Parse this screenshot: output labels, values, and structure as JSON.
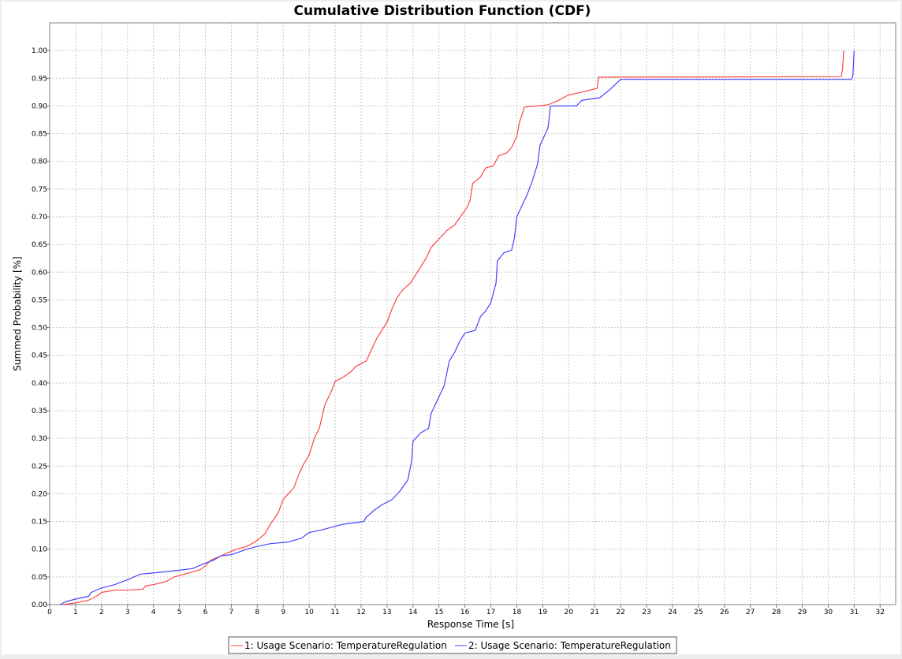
{
  "chart_data": {
    "type": "line",
    "title": "Cumulative Distribution Function (CDF)",
    "xlabel": "Response Time [s]",
    "ylabel": "Summed Probability [%]",
    "xlim": [
      0,
      32.6
    ],
    "ylim": [
      0,
      1.05
    ],
    "xticks": [
      "0",
      "1",
      "2",
      "3",
      "4",
      "5",
      "6",
      "7",
      "8",
      "9",
      "10",
      "11",
      "12",
      "13",
      "14",
      "15",
      "16",
      "17",
      "18",
      "19",
      "20",
      "21",
      "22",
      "23",
      "24",
      "25",
      "26",
      "27",
      "28",
      "29",
      "30",
      "31",
      "32"
    ],
    "yticks": [
      "0.00",
      "0.05",
      "0.10",
      "0.15",
      "0.20",
      "0.25",
      "0.30",
      "0.35",
      "0.40",
      "0.45",
      "0.50",
      "0.55",
      "0.60",
      "0.65",
      "0.70",
      "0.75",
      "0.80",
      "0.85",
      "0.90",
      "0.95",
      "1.00"
    ],
    "grid": true,
    "legend_position": "bottom",
    "series": [
      {
        "name": "1: Usage Scenario: TemperatureRegulation",
        "color": "#ff4444",
        "points": [
          [
            0.5,
            0.0
          ],
          [
            1.0,
            0.003
          ],
          [
            1.5,
            0.008
          ],
          [
            1.8,
            0.015
          ],
          [
            2.0,
            0.022
          ],
          [
            2.5,
            0.026
          ],
          [
            3.0,
            0.026
          ],
          [
            3.6,
            0.028
          ],
          [
            3.7,
            0.034
          ],
          [
            4.0,
            0.036
          ],
          [
            4.5,
            0.042
          ],
          [
            4.8,
            0.05
          ],
          [
            5.2,
            0.055
          ],
          [
            5.8,
            0.063
          ],
          [
            6.0,
            0.07
          ],
          [
            6.2,
            0.08
          ],
          [
            6.8,
            0.092
          ],
          [
            7.2,
            0.1
          ],
          [
            7.6,
            0.105
          ],
          [
            7.9,
            0.113
          ],
          [
            8.1,
            0.12
          ],
          [
            8.3,
            0.128
          ],
          [
            8.5,
            0.145
          ],
          [
            8.8,
            0.165
          ],
          [
            9.0,
            0.19
          ],
          [
            9.2,
            0.2
          ],
          [
            9.4,
            0.21
          ],
          [
            9.6,
            0.235
          ],
          [
            9.8,
            0.255
          ],
          [
            10.0,
            0.27
          ],
          [
            10.2,
            0.3
          ],
          [
            10.4,
            0.32
          ],
          [
            10.6,
            0.36
          ],
          [
            10.8,
            0.38
          ],
          [
            10.9,
            0.39
          ],
          [
            11.0,
            0.403
          ],
          [
            11.3,
            0.41
          ],
          [
            11.6,
            0.42
          ],
          [
            11.8,
            0.43
          ],
          [
            12.0,
            0.435
          ],
          [
            12.2,
            0.44
          ],
          [
            12.4,
            0.46
          ],
          [
            12.6,
            0.48
          ],
          [
            12.8,
            0.495
          ],
          [
            13.0,
            0.51
          ],
          [
            13.2,
            0.535
          ],
          [
            13.4,
            0.555
          ],
          [
            13.6,
            0.568
          ],
          [
            13.9,
            0.58
          ],
          [
            14.1,
            0.595
          ],
          [
            14.3,
            0.61
          ],
          [
            14.5,
            0.625
          ],
          [
            14.7,
            0.645
          ],
          [
            15.0,
            0.66
          ],
          [
            15.3,
            0.675
          ],
          [
            15.6,
            0.685
          ],
          [
            15.9,
            0.705
          ],
          [
            16.1,
            0.718
          ],
          [
            16.2,
            0.73
          ],
          [
            16.3,
            0.76
          ],
          [
            16.6,
            0.772
          ],
          [
            16.8,
            0.788
          ],
          [
            17.1,
            0.792
          ],
          [
            17.3,
            0.81
          ],
          [
            17.6,
            0.815
          ],
          [
            17.8,
            0.825
          ],
          [
            18.0,
            0.845
          ],
          [
            18.1,
            0.87
          ],
          [
            18.3,
            0.898
          ],
          [
            18.8,
            0.9
          ],
          [
            19.2,
            0.902
          ],
          [
            19.6,
            0.91
          ],
          [
            20.0,
            0.92
          ],
          [
            20.5,
            0.925
          ],
          [
            21.1,
            0.932
          ],
          [
            21.15,
            0.952
          ],
          [
            30.5,
            0.953
          ],
          [
            30.55,
            0.965
          ],
          [
            30.6,
            1.0
          ]
        ]
      },
      {
        "name": "2: Usage Scenario: TemperatureRegulation",
        "color": "#4444ff",
        "points": [
          [
            0.4,
            0.0
          ],
          [
            0.6,
            0.005
          ],
          [
            1.0,
            0.01
          ],
          [
            1.5,
            0.015
          ],
          [
            1.6,
            0.022
          ],
          [
            2.0,
            0.03
          ],
          [
            2.5,
            0.036
          ],
          [
            3.0,
            0.045
          ],
          [
            3.5,
            0.055
          ],
          [
            4.0,
            0.057
          ],
          [
            5.0,
            0.062
          ],
          [
            5.5,
            0.065
          ],
          [
            6.0,
            0.075
          ],
          [
            6.3,
            0.08
          ],
          [
            6.6,
            0.088
          ],
          [
            7.0,
            0.09
          ],
          [
            7.6,
            0.1
          ],
          [
            8.0,
            0.105
          ],
          [
            8.5,
            0.11
          ],
          [
            9.2,
            0.113
          ],
          [
            9.7,
            0.12
          ],
          [
            10.0,
            0.13
          ],
          [
            10.5,
            0.135
          ],
          [
            10.9,
            0.14
          ],
          [
            11.3,
            0.145
          ],
          [
            11.8,
            0.148
          ],
          [
            12.1,
            0.15
          ],
          [
            12.2,
            0.158
          ],
          [
            12.5,
            0.17
          ],
          [
            12.8,
            0.18
          ],
          [
            13.2,
            0.19
          ],
          [
            13.5,
            0.205
          ],
          [
            13.8,
            0.225
          ],
          [
            13.95,
            0.26
          ],
          [
            14.0,
            0.295
          ],
          [
            14.3,
            0.31
          ],
          [
            14.6,
            0.318
          ],
          [
            14.7,
            0.345
          ],
          [
            15.0,
            0.375
          ],
          [
            15.2,
            0.395
          ],
          [
            15.4,
            0.44
          ],
          [
            15.6,
            0.455
          ],
          [
            15.8,
            0.475
          ],
          [
            16.0,
            0.49
          ],
          [
            16.4,
            0.495
          ],
          [
            16.6,
            0.52
          ],
          [
            16.8,
            0.53
          ],
          [
            17.0,
            0.545
          ],
          [
            17.2,
            0.58
          ],
          [
            17.25,
            0.62
          ],
          [
            17.5,
            0.635
          ],
          [
            17.8,
            0.64
          ],
          [
            17.9,
            0.66
          ],
          [
            18.0,
            0.7
          ],
          [
            18.2,
            0.72
          ],
          [
            18.4,
            0.74
          ],
          [
            18.6,
            0.765
          ],
          [
            18.8,
            0.795
          ],
          [
            18.9,
            0.83
          ],
          [
            19.1,
            0.85
          ],
          [
            19.2,
            0.86
          ],
          [
            19.3,
            0.9
          ],
          [
            20.3,
            0.9
          ],
          [
            20.5,
            0.91
          ],
          [
            21.2,
            0.915
          ],
          [
            21.6,
            0.93
          ],
          [
            22.0,
            0.948
          ],
          [
            30.9,
            0.948
          ],
          [
            30.95,
            0.955
          ],
          [
            31.0,
            1.0
          ]
        ]
      }
    ]
  }
}
